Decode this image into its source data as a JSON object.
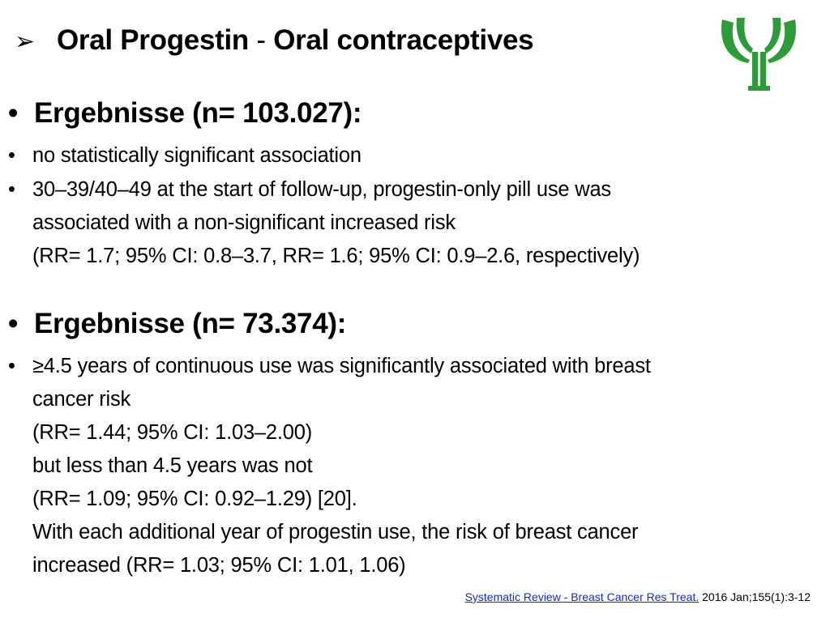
{
  "title": {
    "bullet": "➢",
    "part1": "Oral Progestin",
    "separator": " - ",
    "part2": "Oral contraceptives"
  },
  "logo": {
    "icon": "green-sprout-logo-icon",
    "color": "#2e9b3a"
  },
  "sections": [
    {
      "heading": "Ergebnisse (n= 103.027):",
      "items": [
        {
          "lines": [
            "no statistically significant association"
          ]
        },
        {
          "lines": [
            "30–39/40–49 at the start of follow-up, progestin-only pill use was",
            "associated with a non-significant increased risk",
            "(RR= 1.7; 95% CI: 0.8–3.7, RR= 1.6; 95% CI: 0.9–2.6, respectively)"
          ]
        }
      ]
    },
    {
      "heading": "Ergebnisse (n= 73.374):",
      "items": [
        {
          "lines": [
            "≥4.5 years of continuous use was significantly associated with breast",
            "cancer risk",
            "(RR= 1.44; 95% CI: 1.03–2.00)",
            "but less than 4.5 years was not",
            "(RR= 1.09; 95% CI: 0.92–1.29) [20].",
            "With each additional year of progestin use, the risk of breast cancer",
            "increased (RR= 1.03; 95% CI: 1.01, 1.06)"
          ]
        }
      ]
    }
  ],
  "bullets": {
    "round": "•"
  },
  "source": {
    "link_text": "Systematic Review - Breast Cancer Res Treat.",
    "rest": " 2016 Jan;155(1):3-12"
  }
}
